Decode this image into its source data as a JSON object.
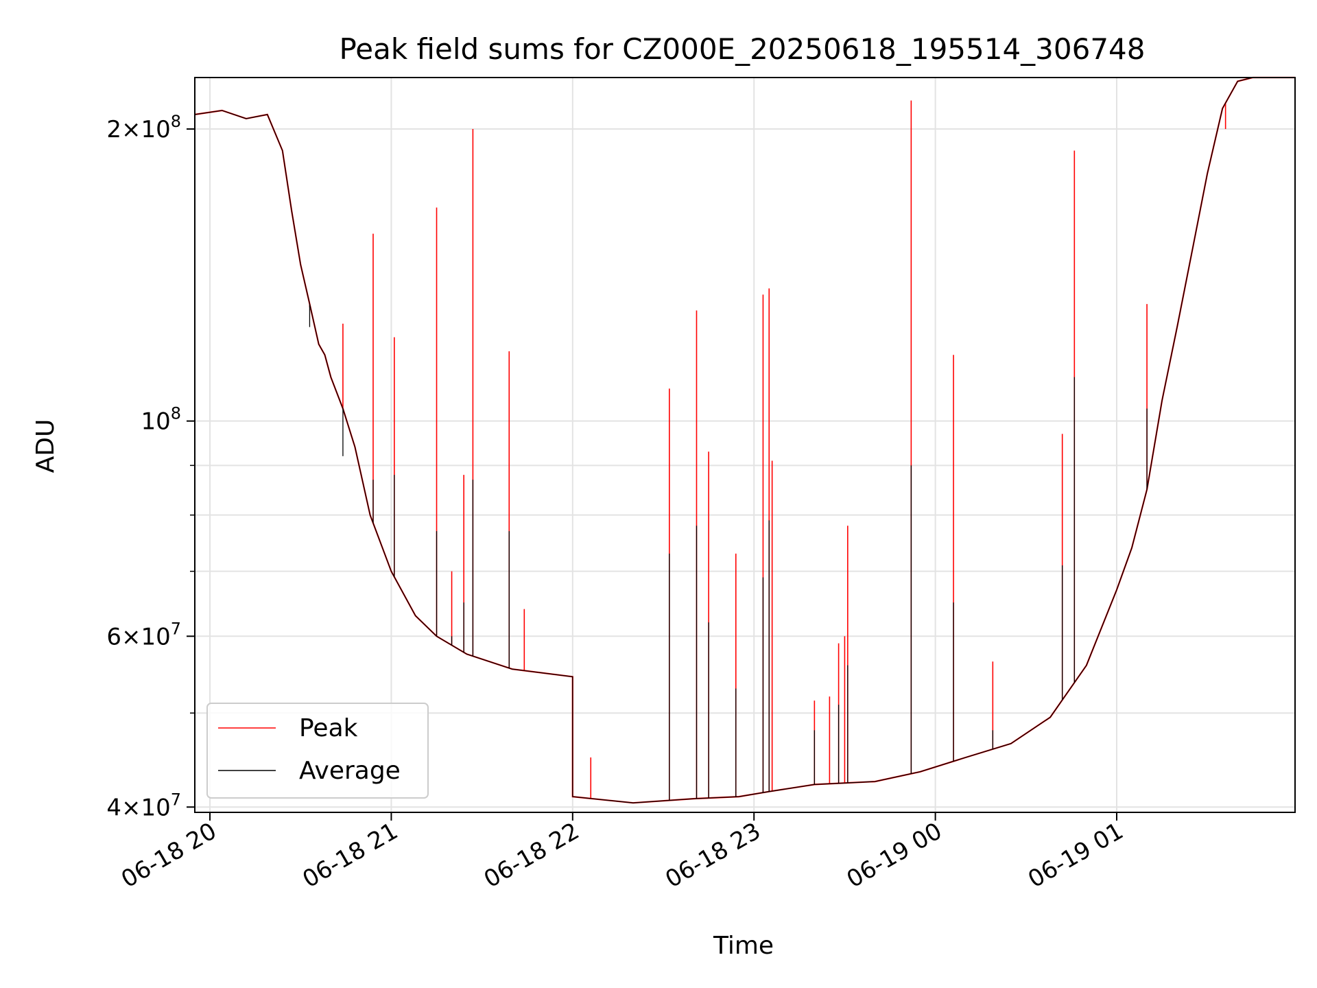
{
  "chart_data": {
    "type": "line",
    "title": "Peak field sums for CZ000E_20250618_195514_306748",
    "xlabel": "Time",
    "ylabel": "ADU",
    "yscale": "log",
    "ylim": [
      39500000,
      226000000
    ],
    "xlim": [
      "2025-06-18 19:55",
      "2025-06-19 01:59"
    ],
    "grid": true,
    "legend_position": "lower-left",
    "x_ticks": [
      "2025-06-18 20:00",
      "2025-06-18 21:00",
      "2025-06-18 22:00",
      "2025-06-18 23:00",
      "2025-06-19 00:00",
      "2025-06-19 01:00"
    ],
    "x_tick_labels": [
      "06-18 20",
      "06-18 21",
      "06-18 22",
      "06-18 23",
      "06-19 00",
      "06-19 01"
    ],
    "y_major_ticks": [
      40000000,
      60000000,
      100000000,
      200000000
    ],
    "y_major_labels": [
      {
        "mantissa": "4",
        "exponent": "7"
      },
      {
        "mantissa": "6",
        "exponent": "7"
      },
      {
        "mantissa": "",
        "exponent": "8"
      },
      {
        "mantissa": "2",
        "exponent": "8"
      }
    ],
    "y_minor_ticks": [
      50000000,
      70000000,
      80000000,
      90000000
    ],
    "series": [
      {
        "name": "Peak",
        "color": "#ff0000",
        "baseline": [
          [
            "2025-06-18 19:55",
            207000000
          ],
          [
            "2025-06-18 20:04",
            209000000
          ],
          [
            "2025-06-18 20:12",
            205000000
          ],
          [
            "2025-06-18 20:19",
            207000000
          ],
          [
            "2025-06-18 20:24",
            190000000
          ],
          [
            "2025-06-18 20:27",
            165000000
          ],
          [
            "2025-06-18 20:30",
            145000000
          ],
          [
            "2025-06-18 20:33",
            132000000
          ],
          [
            "2025-06-18 20:36",
            120000000
          ],
          [
            "2025-06-18 20:38",
            117000000
          ],
          [
            "2025-06-18 20:40",
            111000000
          ],
          [
            "2025-06-18 20:44",
            103000000
          ],
          [
            "2025-06-18 20:48",
            94000000
          ],
          [
            "2025-06-18 20:53",
            80000000
          ],
          [
            "2025-06-18 21:00",
            70000000
          ],
          [
            "2025-06-18 21:08",
            63000000
          ],
          [
            "2025-06-18 21:15",
            60000000
          ],
          [
            "2025-06-18 21:25",
            57500000
          ],
          [
            "2025-06-18 21:40",
            55500000
          ],
          [
            "2025-06-18 22:00",
            54500000
          ],
          [
            "2025-06-18 22:00",
            41000000
          ],
          [
            "2025-06-18 22:20",
            40400000
          ],
          [
            "2025-06-18 22:40",
            40800000
          ],
          [
            "2025-06-18 22:55",
            41000000
          ],
          [
            "2025-06-18 23:05",
            41500000
          ],
          [
            "2025-06-18 23:20",
            42200000
          ],
          [
            "2025-06-18 23:40",
            42500000
          ],
          [
            "2025-06-18 23:55",
            43500000
          ],
          [
            "2025-06-19 00:10",
            45000000
          ],
          [
            "2025-06-19 00:25",
            46500000
          ],
          [
            "2025-06-19 00:38",
            49500000
          ],
          [
            "2025-06-19 00:50",
            56000000
          ],
          [
            "2025-06-19 01:00",
            67000000
          ],
          [
            "2025-06-19 01:05",
            74000000
          ],
          [
            "2025-06-19 01:10",
            85000000
          ],
          [
            "2025-06-19 01:15",
            105000000
          ],
          [
            "2025-06-19 01:20",
            125000000
          ],
          [
            "2025-06-19 01:25",
            150000000
          ],
          [
            "2025-06-19 01:30",
            180000000
          ],
          [
            "2025-06-19 01:35",
            210000000
          ],
          [
            "2025-06-19 01:40",
            224000000
          ],
          [
            "2025-06-19 01:45",
            226000000
          ],
          [
            "2025-06-19 01:59",
            226000000
          ]
        ],
        "spikes": [
          [
            "2025-06-18 20:33",
            131000000
          ],
          [
            "2025-06-18 20:44",
            126000000
          ],
          [
            "2025-06-18 20:54",
            156000000
          ],
          [
            "2025-06-18 21:01",
            122000000
          ],
          [
            "2025-06-18 21:15",
            166000000
          ],
          [
            "2025-06-18 21:20",
            70000000
          ],
          [
            "2025-06-18 21:24",
            88000000
          ],
          [
            "2025-06-18 21:27",
            200000000
          ],
          [
            "2025-06-18 21:39",
            118000000
          ],
          [
            "2025-06-18 21:44",
            64000000
          ],
          [
            "2025-06-18 22:06",
            45000000
          ],
          [
            "2025-06-18 22:32",
            108000000
          ],
          [
            "2025-06-18 22:41",
            130000000
          ],
          [
            "2025-06-18 22:45",
            93000000
          ],
          [
            "2025-06-18 22:54",
            73000000
          ],
          [
            "2025-06-18 23:03",
            135000000
          ],
          [
            "2025-06-18 23:05",
            137000000
          ],
          [
            "2025-06-18 23:06",
            91000000
          ],
          [
            "2025-06-18 23:20",
            51500000
          ],
          [
            "2025-06-18 23:25",
            52000000
          ],
          [
            "2025-06-18 23:28",
            59000000
          ],
          [
            "2025-06-18 23:30",
            60000000
          ],
          [
            "2025-06-18 23:31",
            78000000
          ],
          [
            "2025-06-18 23:52",
            214000000
          ],
          [
            "2025-06-19 00:06",
            117000000
          ],
          [
            "2025-06-19 00:19",
            56500000
          ],
          [
            "2025-06-19 00:42",
            97000000
          ],
          [
            "2025-06-19 00:46",
            190000000
          ],
          [
            "2025-06-19 01:10",
            132000000
          ],
          [
            "2025-06-19 01:36",
            200000000
          ]
        ]
      },
      {
        "name": "Average",
        "color": "#000000",
        "spikes": [
          [
            "2025-06-18 20:33",
            125000000
          ],
          [
            "2025-06-18 20:44",
            92000000
          ],
          [
            "2025-06-18 20:54",
            87000000
          ],
          [
            "2025-06-18 21:01",
            88000000
          ],
          [
            "2025-06-18 21:15",
            77000000
          ],
          [
            "2025-06-18 21:20",
            60000000
          ],
          [
            "2025-06-18 21:24",
            65000000
          ],
          [
            "2025-06-18 21:27",
            87000000
          ],
          [
            "2025-06-18 21:39",
            77000000
          ],
          [
            "2025-06-18 22:32",
            73000000
          ],
          [
            "2025-06-18 22:41",
            78000000
          ],
          [
            "2025-06-18 22:45",
            62000000
          ],
          [
            "2025-06-18 22:54",
            53000000
          ],
          [
            "2025-06-18 23:03",
            69000000
          ],
          [
            "2025-06-18 23:05",
            79000000
          ],
          [
            "2025-06-18 23:20",
            48000000
          ],
          [
            "2025-06-18 23:28",
            51000000
          ],
          [
            "2025-06-18 23:31",
            56000000
          ],
          [
            "2025-06-18 23:52",
            90000000
          ],
          [
            "2025-06-19 00:06",
            65000000
          ],
          [
            "2025-06-19 00:19",
            48000000
          ],
          [
            "2025-06-19 00:42",
            71000000
          ],
          [
            "2025-06-19 00:46",
            111000000
          ],
          [
            "2025-06-19 01:10",
            103000000
          ]
        ]
      }
    ]
  }
}
